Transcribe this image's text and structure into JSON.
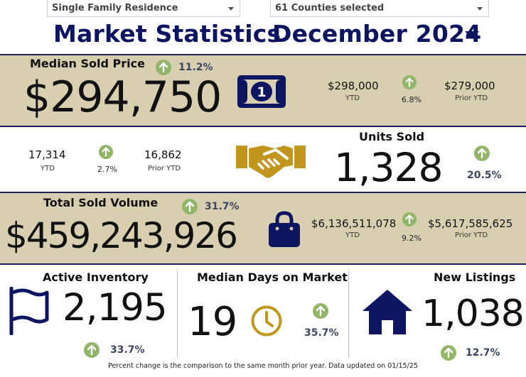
{
  "filters": {
    "property_type": "Single Family Residence",
    "counties": "61 Counties selected"
  },
  "header": {
    "title": "Market Statistics",
    "month": "December 2024"
  },
  "median_sold_price": {
    "label": "Median Sold Price",
    "value": "$294,750",
    "change": "11.2%",
    "ytd_value": "$298,000",
    "ytd_label": "YTD",
    "ytd_change": "6.8%",
    "prior_ytd_value": "$279,000",
    "prior_ytd_label": "Prior YTD"
  },
  "units_sold": {
    "label": "Units Sold",
    "value": "1,328",
    "change": "20.5%",
    "ytd_value": "17,314",
    "ytd_label": "YTD",
    "ytd_change": "2.7%",
    "prior_ytd_value": "16,862",
    "prior_ytd_label": "Prior YTD"
  },
  "total_sold_volume": {
    "label": "Total Sold Volume",
    "value": "$459,243,926",
    "change": "31.7%",
    "ytd_value": "$6,136,511,078",
    "ytd_label": "YTD",
    "ytd_change": "9.2%",
    "prior_ytd_value": "$5,617,585,625",
    "prior_ytd_label": "Prior YTD"
  },
  "active_inventory": {
    "label": "Active Inventory",
    "value": "2,195",
    "change": "33.7%"
  },
  "median_days_on_market": {
    "label": "Median Days on Market",
    "value": "19",
    "change": "35.7%"
  },
  "new_listings": {
    "label": "New Listings",
    "value": "1,038",
    "change": "12.7%"
  },
  "icons": {
    "money": "money-bill-icon",
    "handshake": "handshake-icon",
    "bag": "shopping-bag-icon",
    "flag": "flag-icon",
    "clock": "clock-icon",
    "home": "home-icon",
    "up": "arrow-up-circle-icon"
  },
  "colors": {
    "navy": "#0d1560",
    "tan_band": "#d8cfb1",
    "gold": "#c0961d",
    "up_green": "#93b56a"
  },
  "footer": "Percent change is the comparison to the same month prior year. Data updated on 01/15/25"
}
